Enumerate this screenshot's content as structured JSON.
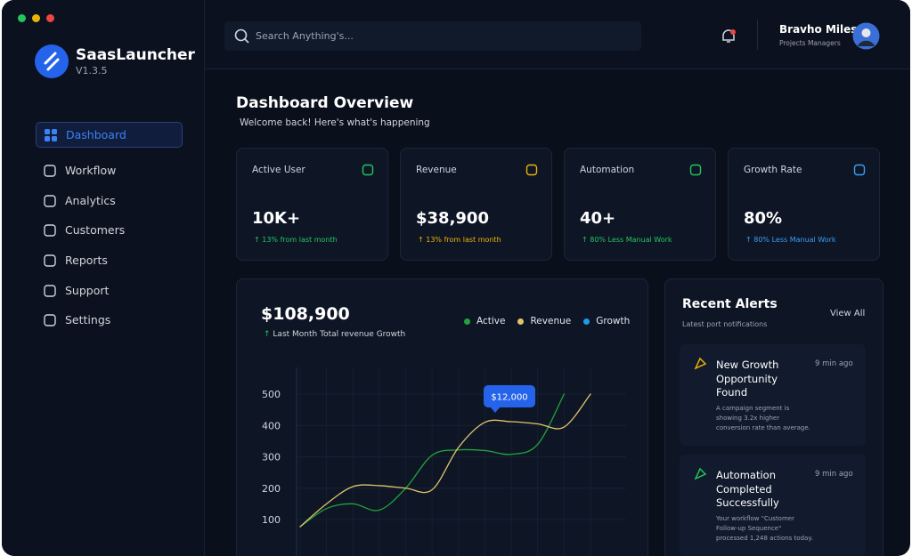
{
  "app": {
    "name": "SaasLauncher",
    "version": "V1.3.5"
  },
  "search": {
    "placeholder": "Search Anything's..."
  },
  "user": {
    "name": "Bravho Miles",
    "role": "Projects Managers"
  },
  "nav": [
    "Dashboard",
    "Workflow",
    "Analytics",
    "Customers",
    "Reports",
    "Support",
    "Settings"
  ],
  "header": {
    "title": "Dashboard Overview",
    "subtitle": "Welcome back! Here's what's happening"
  },
  "cards": [
    {
      "title": "Active User",
      "value": "10K+",
      "change": "13% from last month",
      "color": "#22c55e"
    },
    {
      "title": "Revenue",
      "value": "$38,900",
      "change": "13% from last month",
      "color": "#eab308"
    },
    {
      "title": "Automation",
      "value": "40+",
      "change": "80% Less Manual Work",
      "color": "#22c55e"
    },
    {
      "title": "Growth Rate",
      "value": "80%",
      "change": "80% Less Manual Work",
      "color": "#3b9cf0"
    }
  ],
  "chart_data": {
    "type": "line",
    "total": "$108,900",
    "subtitle": "Last Month Total revenue Growth",
    "categories": [
      null,
      null,
      null,
      null,
      null,
      null,
      null,
      null,
      null,
      null,
      null,
      null
    ],
    "series": [
      {
        "name": "Active",
        "color": "#22a33a",
        "values": [
          77,
          135,
          150,
          130,
          200,
          305,
          322,
          320,
          308,
          340,
          500,
          null
        ]
      },
      {
        "name": "Revenue",
        "color": "#e2c46a",
        "values": [
          77,
          150,
          205,
          208,
          200,
          195,
          330,
          410,
          412,
          405,
          395,
          500
        ]
      },
      {
        "name": "Growth",
        "color": "#1e9be9",
        "values": [
          null,
          null,
          null,
          null,
          null,
          null,
          null,
          null,
          null,
          null,
          null,
          null
        ]
      }
    ],
    "ylim": [
      0,
      500
    ],
    "yticks": [
      100,
      200,
      300,
      400,
      500
    ],
    "grid": true,
    "annotation": "$12,000"
  },
  "alerts": {
    "title": "Recent Alerts",
    "subtitle": "Latest port notifications",
    "action": "View All",
    "items": [
      {
        "title": "New Growth Opportunity Found",
        "time": "9 min ago",
        "text": "A campaign segment is showing 3.2x higher conversion rate than average.",
        "color": "#eab308"
      },
      {
        "title": "Automation Completed Successfully",
        "time": "9 min ago",
        "text": "Your workflow \"Customer Follow-up Sequence\" processed 1,248 actions today.",
        "color": "#22c55e"
      }
    ]
  }
}
